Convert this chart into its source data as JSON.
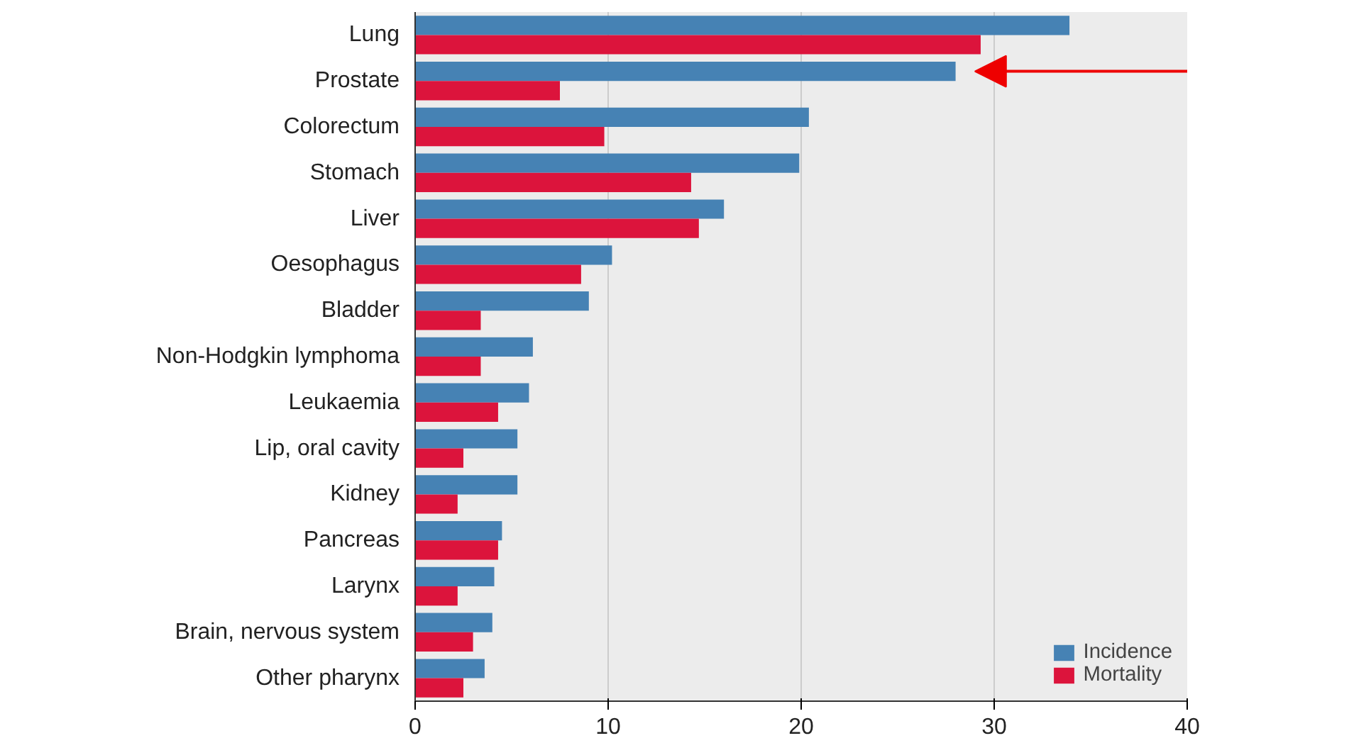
{
  "chart_data": {
    "type": "bar",
    "orientation": "horizontal",
    "categories": [
      "Lung",
      "Prostate",
      "Colorectum",
      "Stomach",
      "Liver",
      "Oesophagus",
      "Bladder",
      "Non-Hodgkin lymphoma",
      "Leukaemia",
      "Lip, oral cavity",
      "Kidney",
      "Pancreas",
      "Larynx",
      "Brain, nervous system",
      "Other pharynx"
    ],
    "series": [
      {
        "name": "Incidence",
        "color": "#4682b4",
        "values": [
          33.9,
          28.0,
          20.4,
          19.9,
          16.0,
          10.2,
          9.0,
          6.1,
          5.9,
          5.3,
          5.3,
          4.5,
          4.1,
          4.0,
          3.6
        ]
      },
      {
        "name": "Mortality",
        "color": "#dc143c",
        "values": [
          29.3,
          7.5,
          9.8,
          14.3,
          14.7,
          8.6,
          3.4,
          3.4,
          4.3,
          2.5,
          2.2,
          4.3,
          2.2,
          3.0,
          2.5
        ]
      }
    ],
    "xlim": [
      0,
      40
    ],
    "xticks": [
      0,
      10,
      20,
      30,
      40
    ],
    "grid": "x",
    "legend": "bottom right"
  }
}
